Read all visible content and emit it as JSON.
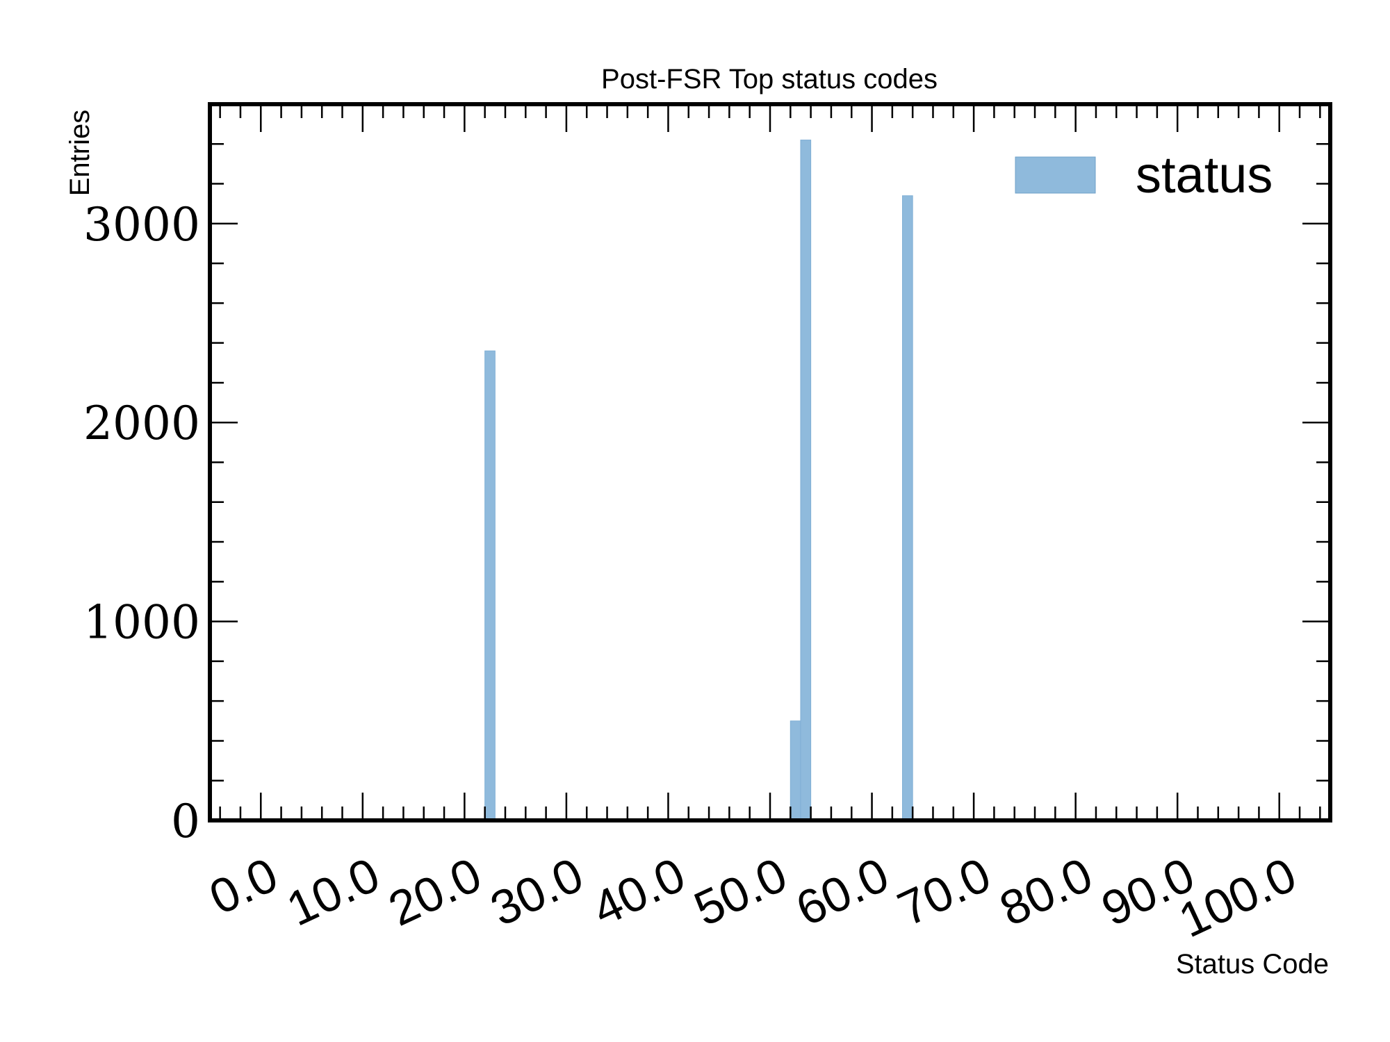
{
  "chart_data": {
    "type": "bar",
    "title": "Post-FSR Top status codes",
    "xlabel": "Status Code",
    "ylabel": "Entries",
    "xlim": [
      -5,
      105
    ],
    "ylim": [
      0,
      3600
    ],
    "bin_width": 1,
    "x_ticks": [
      0,
      10,
      20,
      30,
      40,
      50,
      60,
      70,
      80,
      90,
      100
    ],
    "x_tick_labels": [
      "0.0",
      "10.0",
      "20.0",
      "30.0",
      "40.0",
      "50.0",
      "60.0",
      "70.0",
      "80.0",
      "90.0",
      "100.0"
    ],
    "y_ticks": [
      0,
      1000,
      2000,
      3000
    ],
    "y_tick_labels": [
      "0",
      "1000",
      "2000",
      "3000"
    ],
    "grid": false,
    "legend_position": "top-right",
    "color": "#8fbadc",
    "series": [
      {
        "name": "status",
        "x": [
          22,
          52,
          53,
          63
        ],
        "values": [
          2360,
          500,
          3420,
          3140
        ]
      }
    ]
  }
}
